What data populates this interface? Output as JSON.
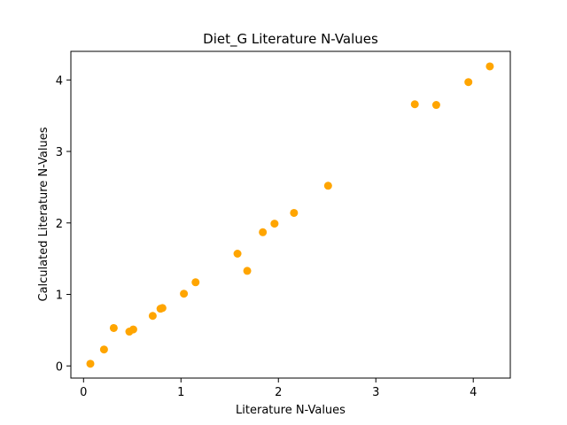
{
  "chart_data": {
    "type": "scatter",
    "title": "Diet_G Literature N-Values",
    "xlabel": "Literature N-Values",
    "ylabel": "Calculated Literature N-Values",
    "xlim": [
      -0.13,
      4.38
    ],
    "ylim": [
      -0.17,
      4.4
    ],
    "xticks": [
      0,
      1,
      2,
      3,
      4
    ],
    "yticks": [
      0,
      1,
      2,
      3,
      4
    ],
    "grid": false,
    "legend": "none",
    "point_color": "#ffa500",
    "points": [
      {
        "x": 0.07,
        "y": 0.03
      },
      {
        "x": 0.21,
        "y": 0.23
      },
      {
        "x": 0.31,
        "y": 0.53
      },
      {
        "x": 0.47,
        "y": 0.48
      },
      {
        "x": 0.51,
        "y": 0.51
      },
      {
        "x": 0.71,
        "y": 0.7
      },
      {
        "x": 0.79,
        "y": 0.8
      },
      {
        "x": 0.81,
        "y": 0.81
      },
      {
        "x": 1.03,
        "y": 1.01
      },
      {
        "x": 1.15,
        "y": 1.17
      },
      {
        "x": 1.58,
        "y": 1.57
      },
      {
        "x": 1.68,
        "y": 1.33
      },
      {
        "x": 1.84,
        "y": 1.87
      },
      {
        "x": 1.96,
        "y": 1.99
      },
      {
        "x": 2.16,
        "y": 2.14
      },
      {
        "x": 2.51,
        "y": 2.52
      },
      {
        "x": 3.4,
        "y": 3.66
      },
      {
        "x": 3.62,
        "y": 3.65
      },
      {
        "x": 3.95,
        "y": 3.97
      },
      {
        "x": 4.17,
        "y": 4.19
      }
    ]
  }
}
